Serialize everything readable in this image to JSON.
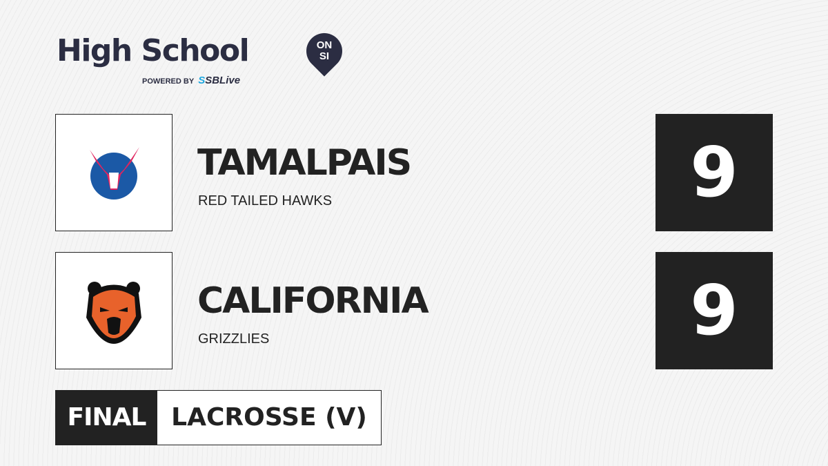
{
  "brand": {
    "title": "High School",
    "badge_line1": "ON",
    "badge_line2": "SI",
    "powered_by": "POWERED BY",
    "partner_prefix": "S",
    "partner": "SBLive"
  },
  "teams": [
    {
      "name": "TAMALPAIS",
      "mascot": "RED TAILED HAWKS",
      "score": "9",
      "logo": "hawk-logo"
    },
    {
      "name": "CALIFORNIA",
      "mascot": "GRIZZLIES",
      "score": "9",
      "logo": "grizzly-logo"
    }
  ],
  "status": "FINAL",
  "sport": "LACROSSE (V)",
  "colors": {
    "dark": "#222222",
    "brand": "#2b2d42",
    "accent": "#1fa8e0"
  }
}
